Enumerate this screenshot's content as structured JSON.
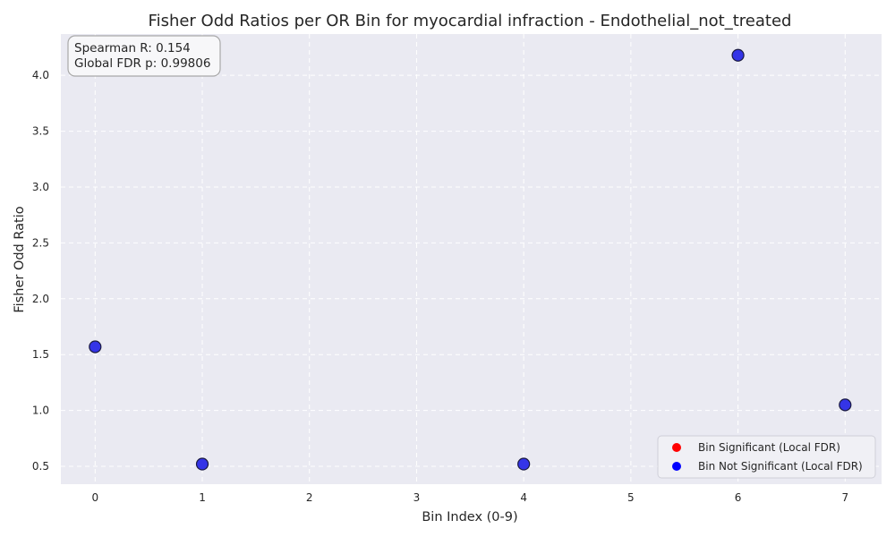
{
  "chart_data": {
    "type": "scatter",
    "title": "Fisher Odd Ratios per OR Bin for myocardial infraction - Endothelial_not_treated",
    "xlabel": "Bin Index (0-9)",
    "ylabel": "Fisher Odd Ratio",
    "xlim": [
      -0.32,
      7.34
    ],
    "ylim": [
      0.34,
      4.37
    ],
    "xticks": [
      0,
      1,
      2,
      3,
      4,
      5,
      6,
      7
    ],
    "yticks": [
      0.5,
      1.0,
      1.5,
      2.0,
      2.5,
      3.0,
      3.5,
      4.0
    ],
    "ytick_labels": [
      "0.5",
      "1.0",
      "1.5",
      "2.0",
      "2.5",
      "3.0",
      "3.5",
      "4.0"
    ],
    "grid": true,
    "legend_position": "bottom-right",
    "series": [
      {
        "name": "Bin Significant (Local FDR)",
        "color": "#ff0000",
        "points": []
      },
      {
        "name": "Bin Not Significant (Local FDR)",
        "color": "#0000ff",
        "points": [
          {
            "x": 0,
            "y": 1.57
          },
          {
            "x": 1,
            "y": 0.52
          },
          {
            "x": 4,
            "y": 0.52
          },
          {
            "x": 6,
            "y": 4.18
          },
          {
            "x": 7,
            "y": 1.05
          }
        ]
      }
    ],
    "annotation": {
      "lines": [
        "Spearman R: 0.154",
        "Global FDR p: 0.99806"
      ]
    },
    "colors": {
      "plot_background": "#eaeaf2",
      "grid": "#ffffff",
      "point_fill": "#2a2ae6",
      "point_edge": "#1a1a40"
    }
  }
}
